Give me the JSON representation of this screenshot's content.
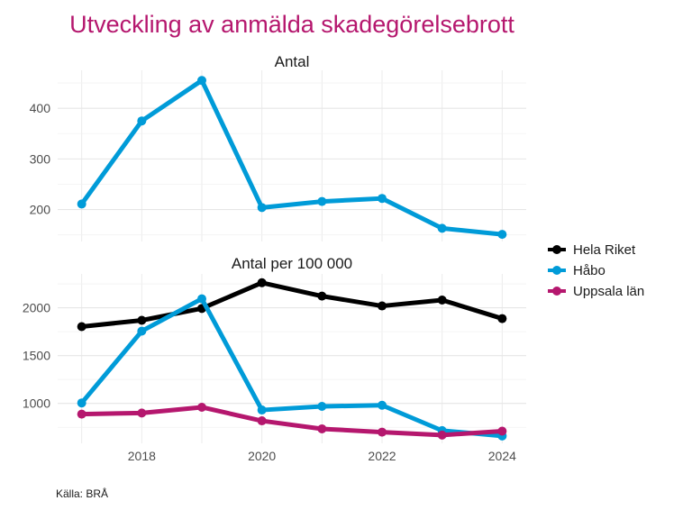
{
  "chart_data": [
    {
      "type": "line",
      "title": "Utveckling av anmälda skadegörelsebrott",
      "panel_title": "Antal",
      "x": [
        2017,
        2018,
        2019,
        2020,
        2021,
        2022,
        2023,
        2024
      ],
      "xticks": [
        2018,
        2020,
        2022,
        2024
      ],
      "yticks": [
        200,
        300,
        400
      ],
      "ylim": [
        137,
        475
      ],
      "xlim": [
        2016.6,
        2024.4
      ],
      "grid": true,
      "series": [
        {
          "name": "Håbo",
          "color": "#009bd8",
          "values": [
            211,
            375,
            455,
            204,
            216,
            222,
            163,
            151
          ]
        }
      ]
    },
    {
      "type": "line",
      "panel_title": "Antal per 100 000",
      "x": [
        2017,
        2018,
        2019,
        2020,
        2021,
        2022,
        2023,
        2024
      ],
      "xticks": [
        2018,
        2020,
        2022,
        2024
      ],
      "yticks": [
        1000,
        1500,
        2000
      ],
      "ylim": [
        583,
        2354
      ],
      "xlim": [
        2016.6,
        2024.4
      ],
      "grid": true,
      "series": [
        {
          "name": "Hela Riket",
          "color": "#000000",
          "values": [
            1803,
            1869,
            1993,
            2262,
            2122,
            2019,
            2081,
            1887
          ]
        },
        {
          "name": "Håbo",
          "color": "#009bd8",
          "values": [
            1005,
            1756,
            2094,
            931,
            969,
            981,
            716,
            660
          ]
        },
        {
          "name": "Uppsala län",
          "color": "#b5176e",
          "values": [
            888,
            900,
            960,
            818,
            734,
            700,
            669,
            710
          ]
        }
      ]
    }
  ],
  "title": "Utveckling av anmälda skadegörelsebrott",
  "legend": {
    "position": "right",
    "items": [
      {
        "label": "Hela Riket",
        "color": "#000000"
      },
      {
        "label": "Håbo",
        "color": "#009bd8"
      },
      {
        "label": "Uppsala län",
        "color": "#b5176e"
      }
    ]
  },
  "caption": "Källa: BRÅ"
}
